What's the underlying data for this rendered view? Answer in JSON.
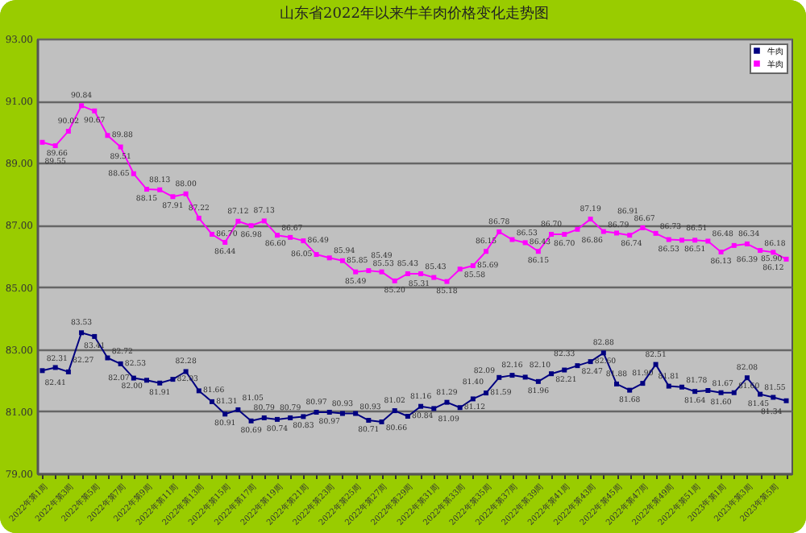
{
  "chart_data": {
    "type": "line",
    "title": "山东省2022年以来牛羊肉价格变化走势图",
    "categories": [
      "2022年第1周",
      null,
      "2022年第3周",
      null,
      "2022年第5周",
      null,
      "2022年第7周",
      null,
      "2022年第9周",
      null,
      "2022年第11周",
      null,
      "2022年第13周",
      null,
      "2022年第15周",
      null,
      "2022年第17周",
      null,
      "2022年第19周",
      null,
      "2022年第21周",
      null,
      "2022年第23周",
      null,
      "2022年第25周",
      null,
      "2022年第27周",
      null,
      "2022年第29周",
      null,
      "2022年第31周",
      null,
      "2022年第33周",
      null,
      "2022年第35周",
      null,
      "2022年第37周",
      null,
      "2022年第39周",
      null,
      "2022年第41周",
      null,
      "2022年第43周",
      null,
      "2022年第45周",
      null,
      "2022年第47周",
      null,
      "2022年第49周",
      null,
      "2022年第51周",
      null,
      "2023年第1周",
      null,
      "2023年第3周",
      null,
      "2023年第5周",
      null
    ],
    "series": [
      {
        "name": "牛肉",
        "color": "#000080",
        "values": [
          82.31,
          82.41,
          82.27,
          83.53,
          83.41,
          82.72,
          82.53,
          82.07,
          82.0,
          81.91,
          82.03,
          82.28,
          81.66,
          81.31,
          80.91,
          81.05,
          80.69,
          80.79,
          80.74,
          80.79,
          80.83,
          80.97,
          80.97,
          80.93,
          80.93,
          80.71,
          80.66,
          81.02,
          80.84,
          81.16,
          81.09,
          81.29,
          81.12,
          81.4,
          81.59,
          82.09,
          82.16,
          82.1,
          81.96,
          82.21,
          82.33,
          82.47,
          82.6,
          82.88,
          81.88,
          81.68,
          81.9,
          82.51,
          81.81,
          81.78,
          81.64,
          81.67,
          81.6,
          81.6,
          82.08,
          81.55,
          81.45,
          81.34
        ],
        "value_labels": [
          "82.31",
          "82.41",
          "82.27",
          "83.53",
          "83.41",
          "82.72",
          "82.53",
          "82.07",
          "82.00",
          "81.91",
          "82.03",
          "82.28",
          "81.66",
          "81.31",
          "80.91",
          "81.05",
          "80.69",
          "80.79",
          "80.74",
          "80.79",
          "80.83",
          "80.97",
          "80.97",
          "80.93",
          "80.93",
          "80.71",
          "80.66",
          "81.02",
          "80.84",
          "81.16",
          "81.09",
          "81.29",
          "81.12",
          "81.40",
          "81.59",
          "82.09",
          "82.16",
          "82.10",
          "81.96",
          "82.21",
          "82.33",
          "82.47",
          "82.60",
          "82.88",
          "81.88",
          "81.68",
          "81.90",
          "82.51",
          "81.81",
          "81.78",
          "81.64",
          "81.67",
          "81.60",
          "81.60",
          "82.08",
          "81.55",
          "81.45",
          "81.34"
        ]
      },
      {
        "name": "羊肉",
        "color": "#ff00ff",
        "values": [
          89.66,
          89.55,
          90.02,
          90.84,
          90.67,
          89.88,
          89.51,
          88.65,
          88.15,
          88.13,
          87.91,
          88.0,
          87.22,
          86.7,
          86.44,
          87.12,
          86.98,
          87.13,
          86.67,
          86.6,
          86.49,
          86.05,
          85.94,
          85.85,
          85.49,
          85.53,
          85.49,
          85.2,
          85.43,
          85.43,
          85.31,
          85.18,
          85.58,
          85.69,
          86.15,
          86.78,
          86.53,
          86.43,
          86.15,
          86.7,
          86.7,
          86.86,
          87.19,
          86.79,
          86.74,
          86.67,
          86.91,
          86.73,
          86.53,
          86.51,
          86.51,
          86.48,
          86.13,
          86.34,
          86.39,
          86.18,
          86.12,
          85.9
        ],
        "value_labels": [
          "89.66",
          "89.55",
          "90.02",
          "90.84",
          "90.67",
          "89.88",
          "89.51",
          "88.65",
          "88.15",
          "88.13",
          "87.91",
          "88.00",
          "87.22",
          "86.70",
          "86.44",
          "87.12",
          "86.98",
          "87.13",
          "86.67",
          "86.60",
          "86.49",
          "86.05",
          "85.94",
          "85.85",
          "85.49",
          "85.53",
          "85.49",
          "85.20",
          "85.43",
          "85.43",
          "85.31",
          "85.18",
          "85.58",
          "85.69",
          "86.15",
          "86.78",
          "86.53",
          "86.43",
          "86.15",
          "86.70",
          "86.70",
          "86.86",
          "87.19",
          "86.79",
          "86.74",
          "86.67",
          "86.91",
          "86.73",
          "86.53",
          "86.51",
          "86.51",
          "86.48",
          "86.13",
          "86.34",
          "86.39",
          "86.18",
          "86.12",
          "85.90"
        ]
      }
    ],
    "ylim": [
      79,
      93
    ],
    "yticks": [
      {
        "value": 79,
        "label": "79.00"
      },
      {
        "value": 81,
        "label": "81.00"
      },
      {
        "value": 83,
        "label": "83.00"
      },
      {
        "value": 85,
        "label": "85.00"
      },
      {
        "value": 87,
        "label": "87.00"
      },
      {
        "value": 89,
        "label": "89.00"
      },
      {
        "value": 91,
        "label": "91.00"
      },
      {
        "value": 93,
        "label": "93.00"
      }
    ],
    "grid": "y",
    "legend": "top right",
    "marker": "square",
    "line_style": "solid"
  }
}
